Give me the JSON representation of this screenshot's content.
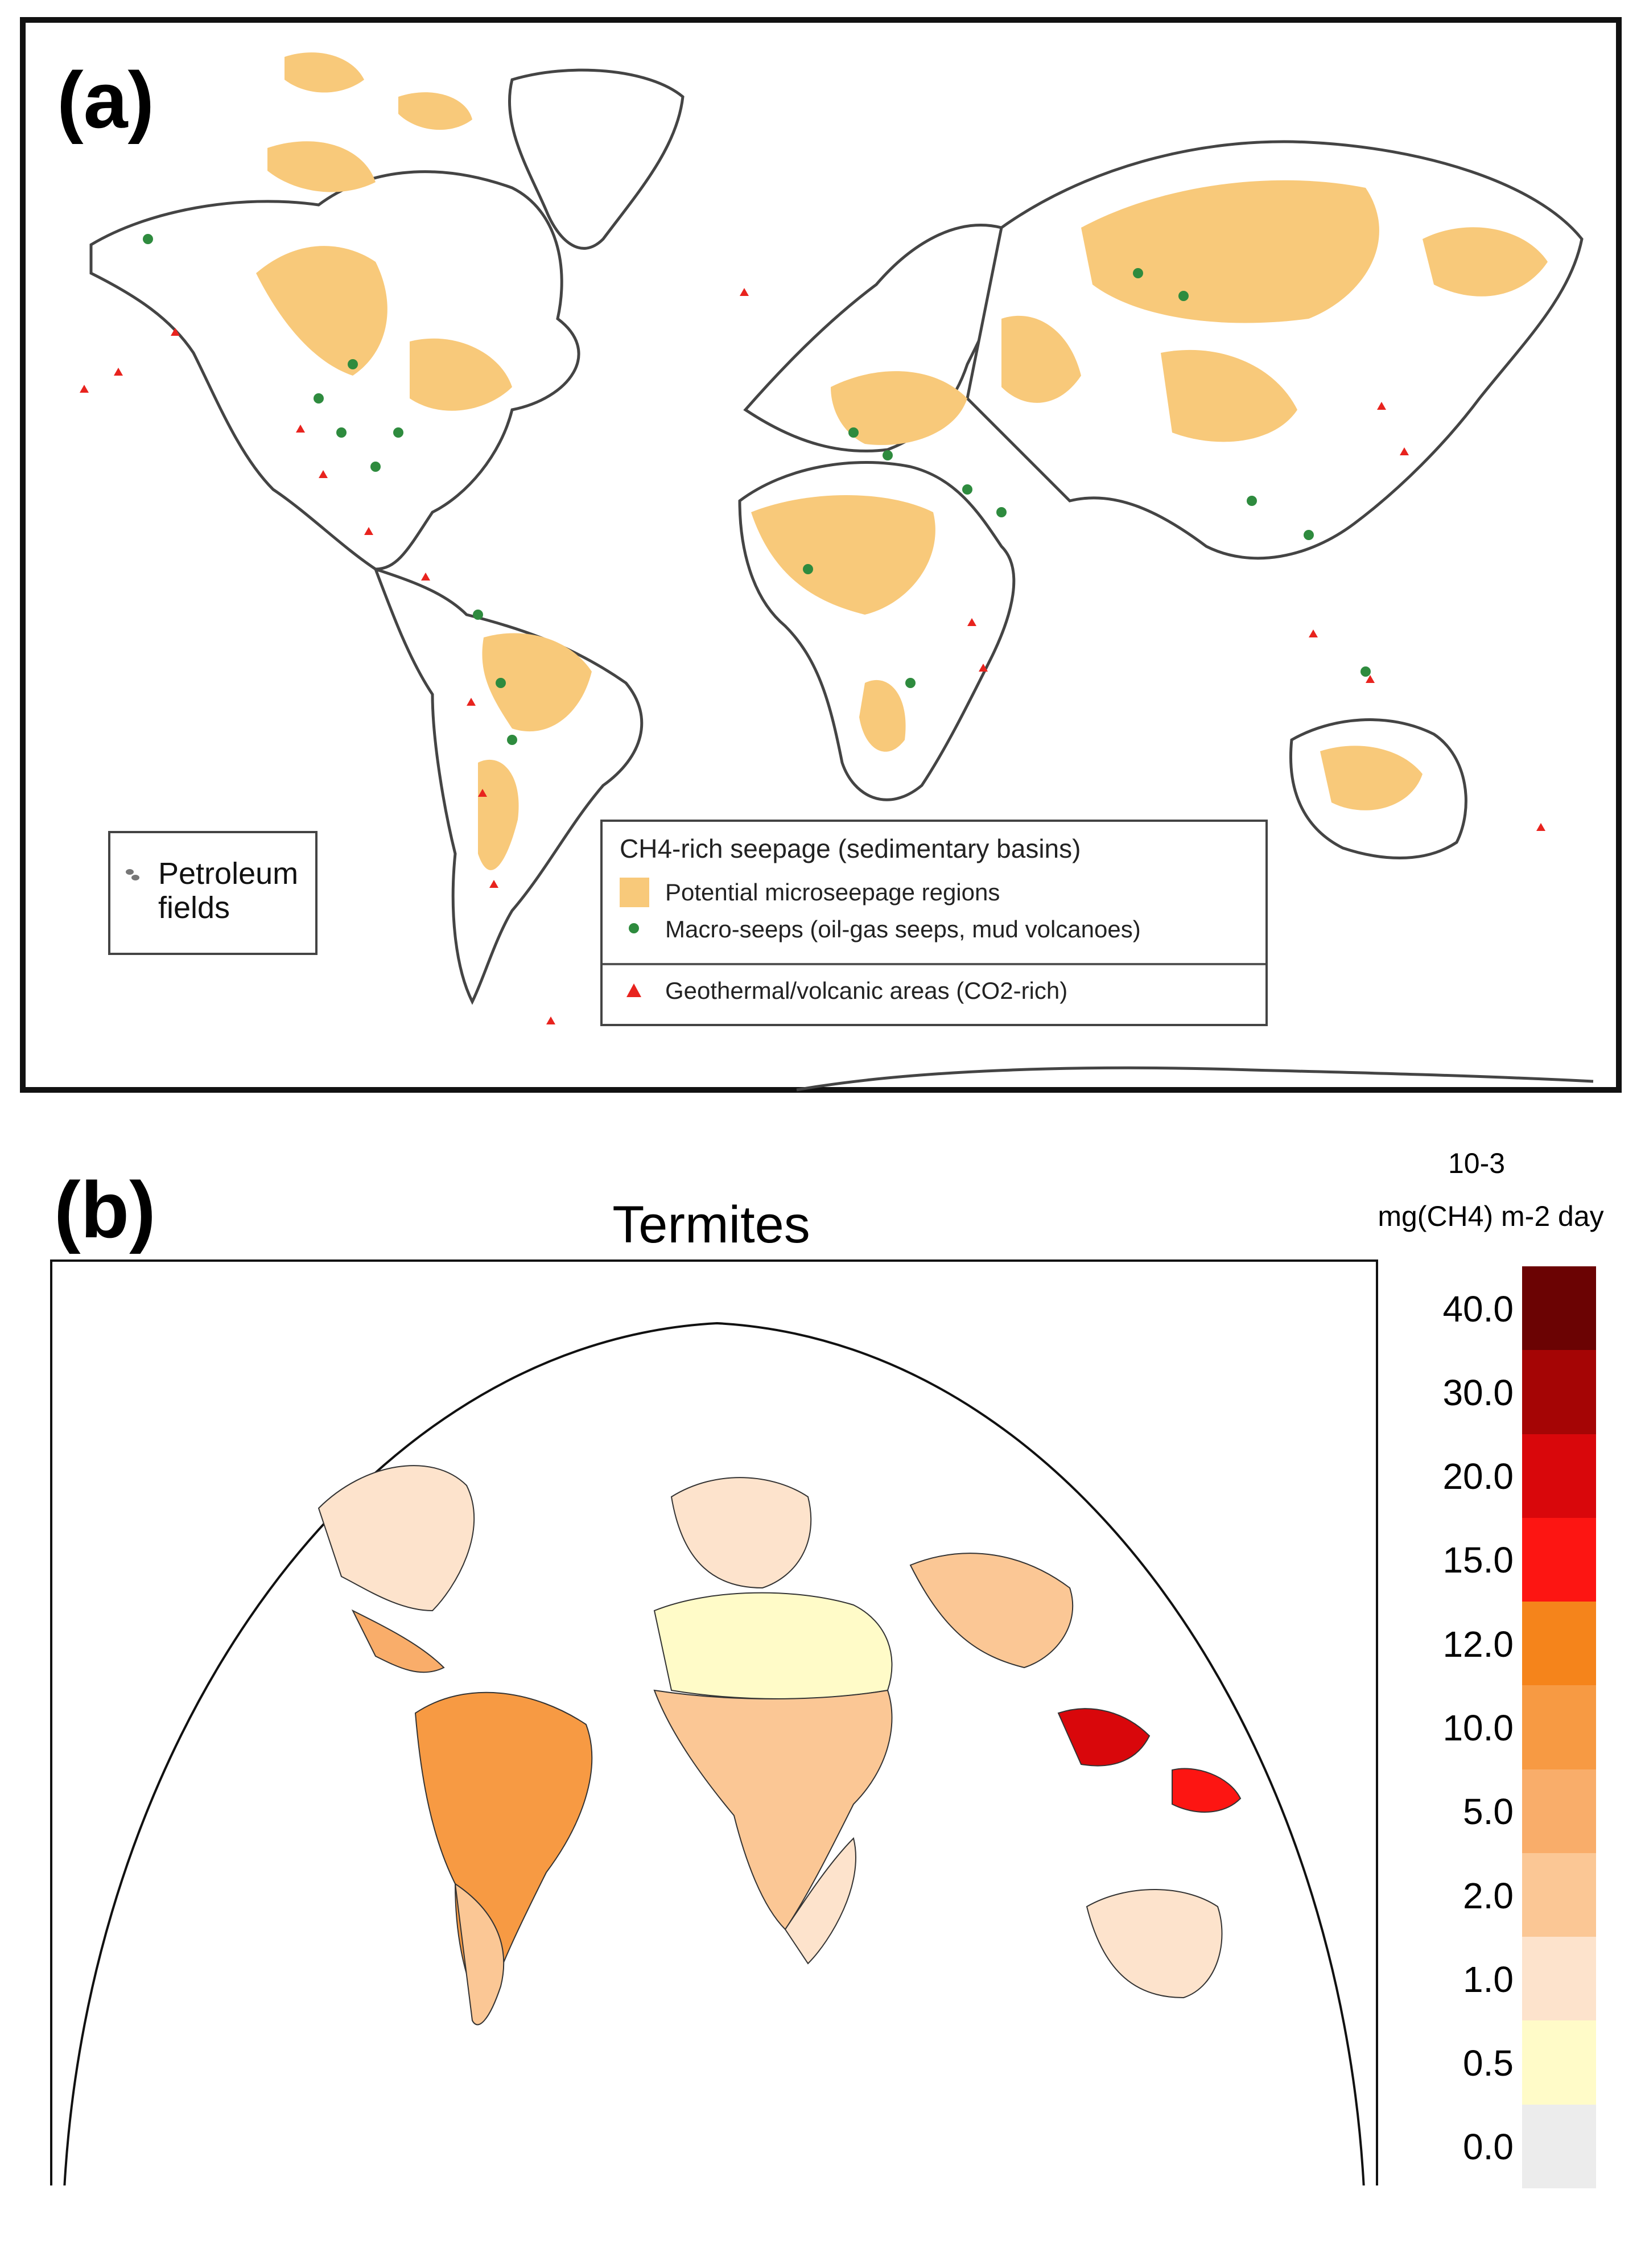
{
  "panel_a": {
    "label": "(a)",
    "petroleum_legend": {
      "text_line1": "Petroleum",
      "text_line2": "fields"
    },
    "seepage_legend": {
      "title": "CH4-rich seepage (sedimentary basins)",
      "items": [
        {
          "label": "Potential microseepage regions",
          "color": "#f8c97a",
          "symbol": "square"
        },
        {
          "label": "Macro-seeps (oil-gas seeps, mud volcanoes)",
          "color": "#2e8b3e",
          "symbol": "circle"
        }
      ],
      "geothermal": {
        "label": "Geothermal/volcanic areas (CO2-rich)",
        "color": "#e8231e",
        "symbol": "triangle"
      }
    }
  },
  "panel_b": {
    "label": "(b)",
    "title": "Termites",
    "unit_line1": "10-3",
    "unit_line2": "mg(CH4) m-2 day",
    "colorbar": {
      "levels": [
        "0.0",
        "0.5",
        "1.0",
        "2.0",
        "5.0",
        "10.0",
        "12.0",
        "15.0",
        "20.0",
        "30.0",
        "40.0"
      ],
      "colors": [
        "#ececec",
        "#fffbc8",
        "#fde3cc",
        "#fbc795",
        "#f9ad6a",
        "#f79a43",
        "#f5841b",
        "#fd1512",
        "#d9070b",
        "#a50505",
        "#6b0303"
      ]
    }
  }
}
